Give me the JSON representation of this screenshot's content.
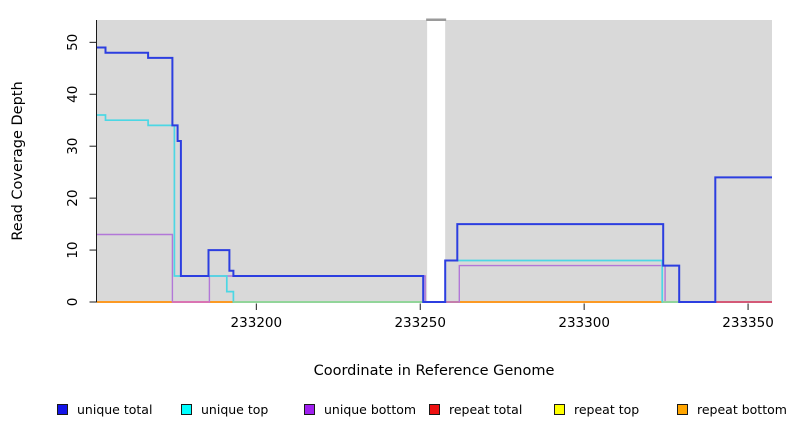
{
  "chart_data": {
    "type": "line",
    "subtype": "step-after-coverage-plot",
    "title": "",
    "xlabel": "Coordinate in Reference Genome",
    "ylabel": "Read Coverage Depth",
    "xlim": [
      233151.4,
      233357.3
    ],
    "ylim": [
      0,
      54.3
    ],
    "x_ticks": [
      233200,
      233250,
      233300,
      233350
    ],
    "y_ticks": [
      0,
      10,
      20,
      30,
      40,
      50
    ],
    "grid": "off",
    "plot_background": "#d9d9d9",
    "gap_region": {
      "from": 233252.1,
      "to": 233257.6,
      "fill": "#ffffff",
      "cap_color": "#9a9a9a"
    },
    "series": [
      {
        "name": "repeat top",
        "color": "#ffe400",
        "width": 1.4,
        "layer": 1,
        "points": [
          [
            233151.4,
            0
          ],
          [
            233357.3,
            0
          ]
        ]
      },
      {
        "name": "repeat total",
        "color": "#e02020",
        "width": 1.4,
        "layer": 2,
        "points": [
          [
            233151.4,
            0
          ],
          [
            233357.3,
            0
          ]
        ]
      },
      {
        "name": "repeat bottom",
        "color": "#ff9e1f",
        "width": 1.8,
        "layer": 3,
        "points": [
          [
            233151.4,
            0
          ],
          [
            233357.3,
            0
          ]
        ]
      },
      {
        "name": "unique bottom",
        "color": "#b277d8",
        "width": 1.4,
        "layer": 4,
        "points": [
          [
            233151.4,
            13
          ],
          [
            233174.4,
            0
          ],
          [
            233185.7,
            5
          ],
          [
            233251.5,
            0
          ],
          [
            233261.9,
            7
          ],
          [
            233324.7,
            0
          ],
          [
            233357.3,
            0
          ]
        ]
      },
      {
        "name": "unique top",
        "color": "#4cd7e4",
        "width": 1.7,
        "layer": 5,
        "points": [
          [
            233151.4,
            36
          ],
          [
            233154,
            35
          ],
          [
            233167,
            34
          ],
          [
            233175,
            5
          ],
          [
            233191,
            2
          ],
          [
            233193,
            0
          ],
          [
            233257.6,
            8
          ],
          [
            233323.8,
            0
          ],
          [
            233357.3,
            0
          ]
        ]
      },
      {
        "name": "unique total",
        "color": "#2c3ee0",
        "width": 2,
        "layer": 10,
        "points": [
          [
            233151.4,
            49
          ],
          [
            233154,
            48
          ],
          [
            233167,
            47
          ],
          [
            233174.4,
            34
          ],
          [
            233176,
            31
          ],
          [
            233177,
            5
          ],
          [
            233185.4,
            10
          ],
          [
            233191.8,
            6
          ],
          [
            233193,
            5
          ],
          [
            233250.9,
            0
          ],
          [
            233257.6,
            8
          ],
          [
            233261.3,
            15
          ],
          [
            233324.1,
            7
          ],
          [
            233329,
            0
          ],
          [
            233340,
            24
          ],
          [
            233357.3,
            24
          ]
        ]
      }
    ],
    "baseline_overlays": [
      {
        "from": 233174.4,
        "to": 233185.7,
        "color": "#db6ec4",
        "width": 1.5,
        "meaning": "unique-bottom over repeat-bottom blend"
      },
      {
        "from": 233193,
        "to": 233251.5,
        "color": "#96d796",
        "width": 1.7,
        "meaning": "unique-top over repeat lines blend"
      },
      {
        "from": 233324,
        "to": 233329,
        "color": "#96d796",
        "width": 1.7,
        "meaning": "unique-top over repeat lines blend"
      },
      {
        "from": 233340,
        "to": 233357.3,
        "color": "#e34a6b",
        "width": 1.7,
        "meaning": "repeat-total visible at baseline"
      }
    ],
    "legend": [
      {
        "label": "unique total",
        "color": "#1414e8"
      },
      {
        "label": "unique top",
        "color": "#00ffff"
      },
      {
        "label": "unique bottom",
        "color": "#a020f0"
      },
      {
        "label": "repeat total",
        "color": "#ee1111"
      },
      {
        "label": "repeat top",
        "color": "#ffff00"
      },
      {
        "label": "repeat bottom",
        "color": "#ffa500"
      }
    ],
    "legend_position": "bottom"
  }
}
